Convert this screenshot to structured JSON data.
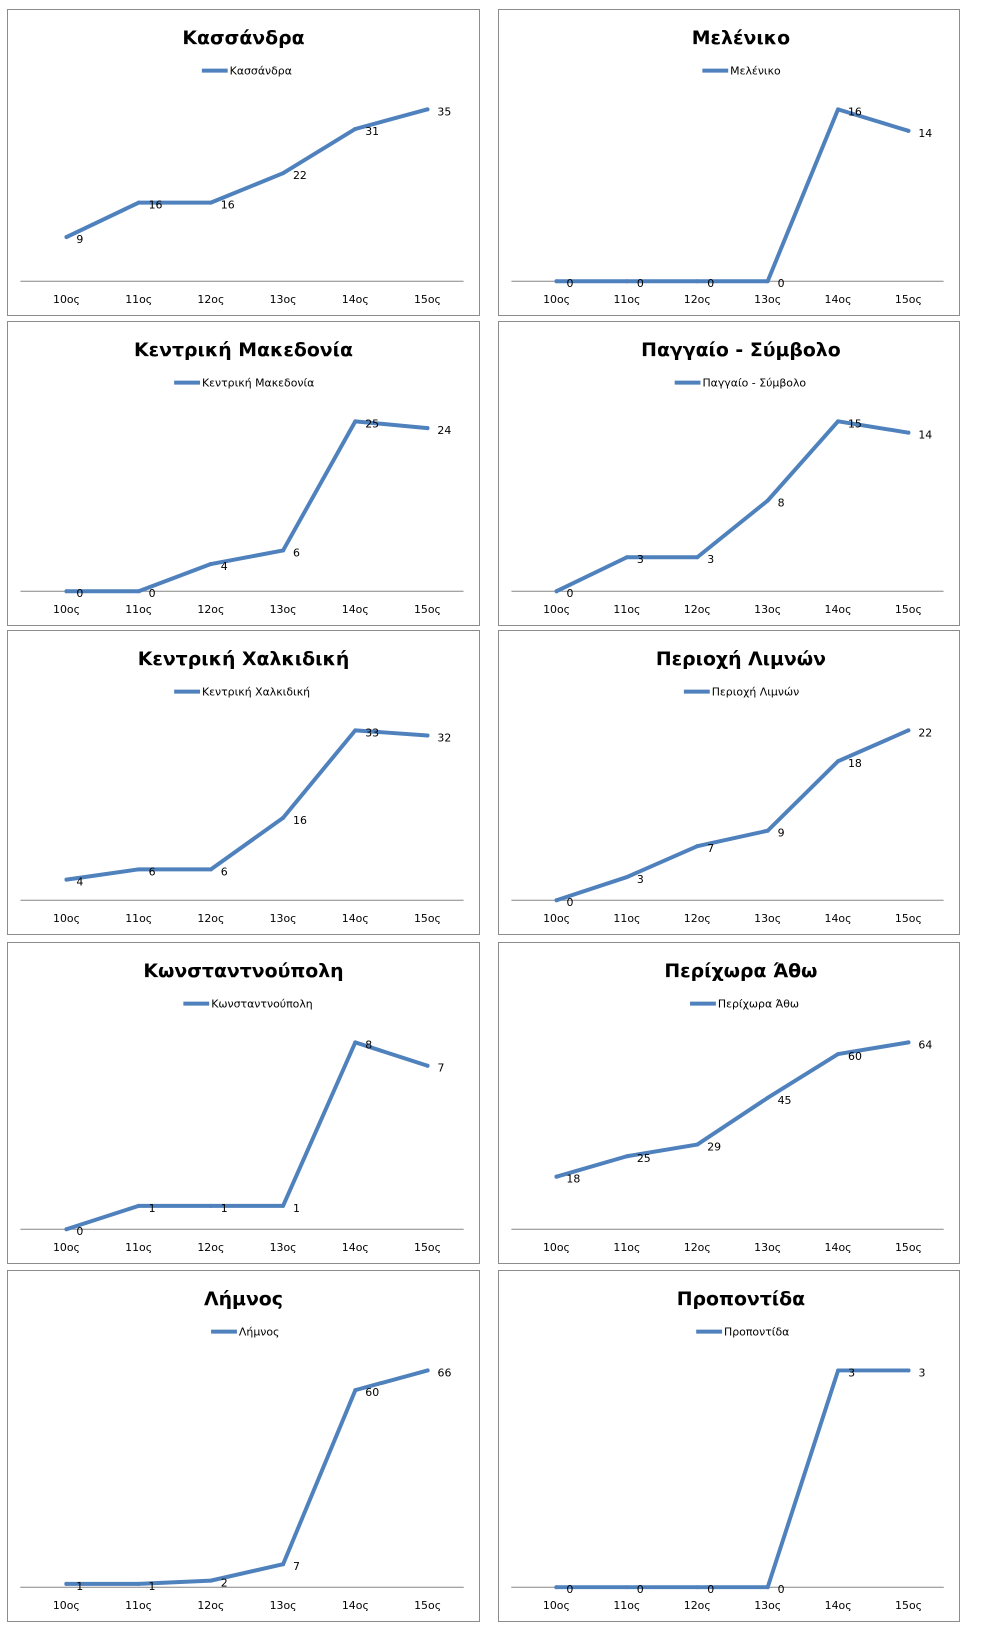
{
  "colors": {
    "series": "#4f81bd",
    "axis": "#868686",
    "text": "#000000"
  },
  "chart_data": [
    {
      "type": "line",
      "title": "Κασσάνδρα",
      "categories": [
        "10ος",
        "11ος",
        "12ος",
        "13ος",
        "14ος",
        "15ος"
      ],
      "series": [
        {
          "name": "Κασσάνδρα",
          "values": [
            9,
            16,
            16,
            22,
            31,
            35
          ]
        }
      ],
      "legend": "top",
      "grid": false
    },
    {
      "type": "line",
      "title": "Μελένικο",
      "categories": [
        "10ος",
        "11ος",
        "12ος",
        "13ος",
        "14ος",
        "15ος"
      ],
      "series": [
        {
          "name": "Μελένικο",
          "values": [
            0,
            0,
            0,
            0,
            16,
            14
          ]
        }
      ],
      "legend": "top",
      "grid": false
    },
    {
      "type": "line",
      "title": "Κεντρική Μακεδονία",
      "categories": [
        "10ος",
        "11ος",
        "12ος",
        "13ος",
        "14ος",
        "15ος"
      ],
      "series": [
        {
          "name": "Κεντρική Μακεδονία",
          "values": [
            0,
            0,
            4,
            6,
            25,
            24
          ]
        }
      ],
      "legend": "top",
      "grid": false
    },
    {
      "type": "line",
      "title": "Παγγαίο - Σύμβολο",
      "categories": [
        "10ος",
        "11ος",
        "12ος",
        "13ος",
        "14ος",
        "15ος"
      ],
      "series": [
        {
          "name": "Παγγαίο - Σύμβολο",
          "values": [
            0,
            3,
            3,
            8,
            15,
            14
          ]
        }
      ],
      "legend": "top",
      "grid": false
    },
    {
      "type": "line",
      "title": "Κεντρική Χαλκιδική",
      "categories": [
        "10ος",
        "11ος",
        "12ος",
        "13ος",
        "14ος",
        "15ος"
      ],
      "series": [
        {
          "name": "Κεντρική Χαλκιδική",
          "values": [
            4,
            6,
            6,
            16,
            33,
            32
          ]
        }
      ],
      "legend": "top",
      "grid": false
    },
    {
      "type": "line",
      "title": "Περιοχή Λιμνών",
      "categories": [
        "10ος",
        "11ος",
        "12ος",
        "13ος",
        "14ος",
        "15ος"
      ],
      "series": [
        {
          "name": "Περιοχή Λιμνών",
          "values": [
            0,
            3,
            7,
            9,
            18,
            22
          ]
        }
      ],
      "legend": "top",
      "grid": false
    },
    {
      "type": "line",
      "title": "Κωνσταντνούπολη",
      "categories": [
        "10ος",
        "11ος",
        "12ος",
        "13ος",
        "14ος",
        "15ος"
      ],
      "series": [
        {
          "name": "Κωνσταντνούπολη",
          "values": [
            0,
            1,
            1,
            1,
            8,
            7
          ]
        }
      ],
      "legend": "top",
      "grid": false
    },
    {
      "type": "line",
      "title": "Περίχωρα Άθω",
      "categories": [
        "10ος",
        "11ος",
        "12ος",
        "13ος",
        "14ος",
        "15ος"
      ],
      "series": [
        {
          "name": "Περίχωρα Άθω",
          "values": [
            18,
            25,
            29,
            45,
            60,
            64
          ]
        }
      ],
      "legend": "top",
      "grid": false
    },
    {
      "type": "line",
      "title": "Λήμνος",
      "categories": [
        "10ος",
        "11ος",
        "12ος",
        "13ος",
        "14ος",
        "15ος"
      ],
      "series": [
        {
          "name": "Λήμνος",
          "values": [
            1,
            1,
            2,
            7,
            60,
            66
          ]
        }
      ],
      "legend": "top",
      "grid": false
    },
    {
      "type": "line",
      "title": "Προποντίδα",
      "categories": [
        "10ος",
        "11ος",
        "12ος",
        "13ος",
        "14ος",
        "15ος"
      ],
      "series": [
        {
          "name": "Προποντίδα",
          "values": [
            0,
            0,
            0,
            0,
            3,
            3
          ]
        }
      ],
      "legend": "top",
      "grid": false
    }
  ]
}
